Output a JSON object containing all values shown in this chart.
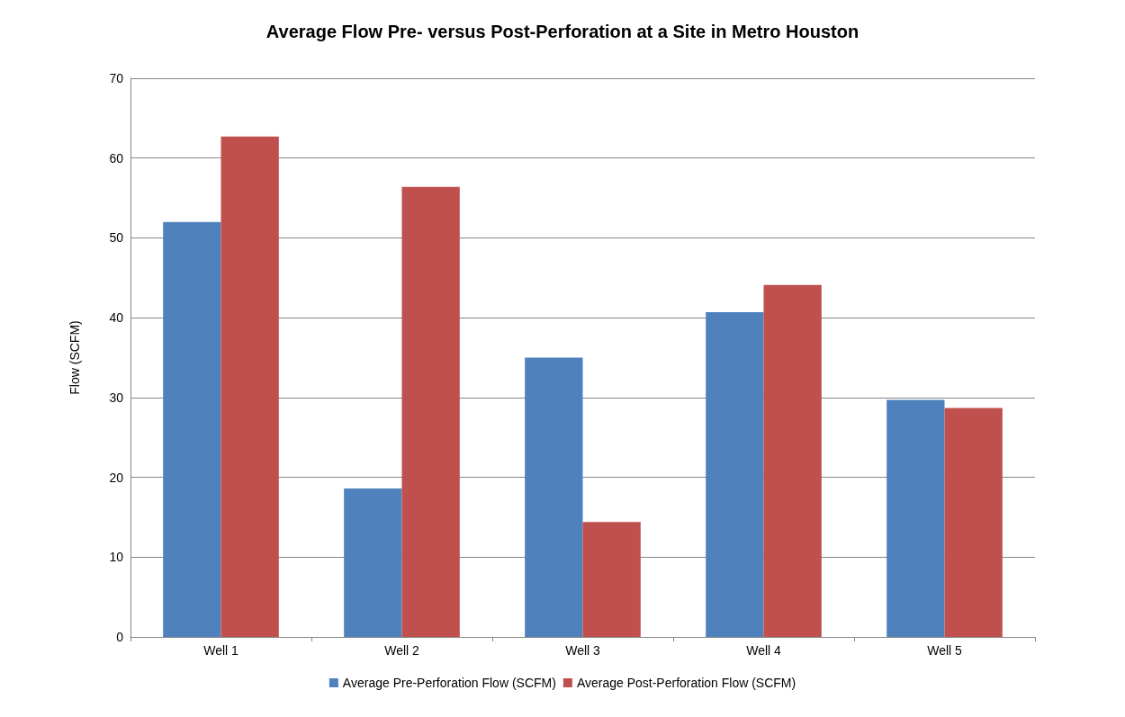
{
  "chart_data": {
    "type": "bar",
    "title": "Average Flow Pre- versus Post-Perforation at a Site in Metro Houston",
    "ylabel": "Flow (SCFM)",
    "categories": [
      "Well 1",
      "Well 2",
      "Well 3",
      "Well 4",
      "Well 5"
    ],
    "series": [
      {
        "name": "Average Pre-Perforation Flow (SCFM)",
        "color": "#4f81bd",
        "values": [
          52,
          18.6,
          35,
          40.7,
          29.7
        ]
      },
      {
        "name": "Average Post-Perforation Flow (SCFM)",
        "color": "#c0504d",
        "values": [
          62.7,
          56.4,
          14.4,
          44.1,
          28.7
        ]
      }
    ],
    "ylim": [
      0,
      70
    ],
    "yticks": [
      0,
      10,
      20,
      30,
      40,
      50,
      60,
      70
    ],
    "grid": "y",
    "legend": "bottom"
  }
}
